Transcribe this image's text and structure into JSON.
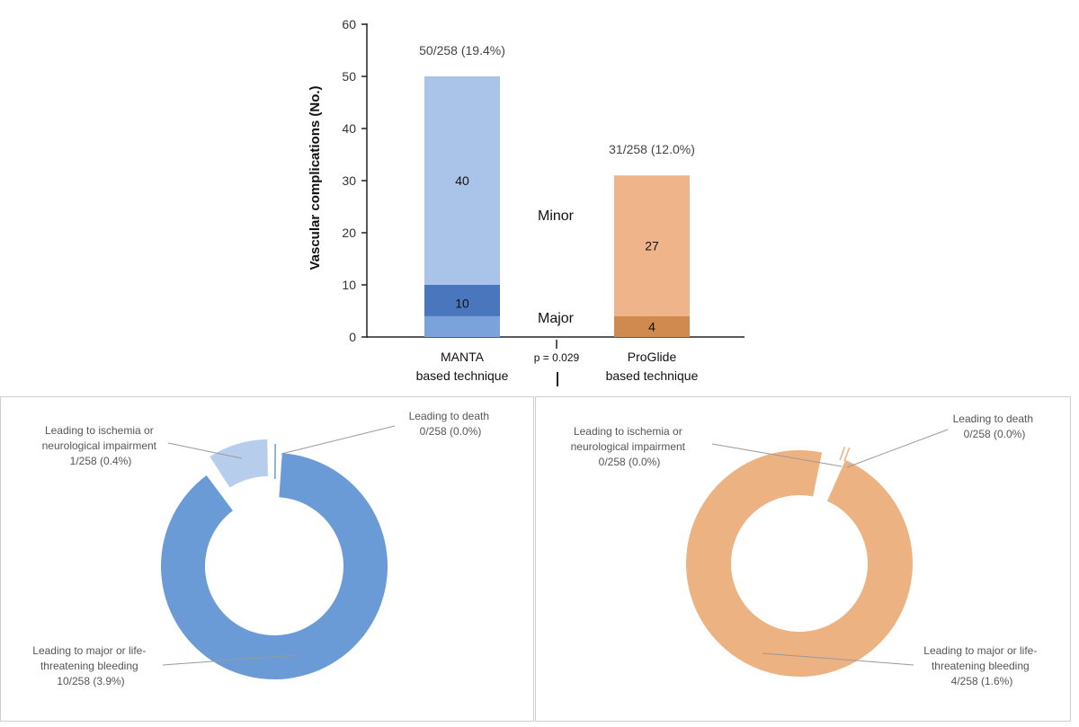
{
  "chart_data": [
    {
      "type": "bar",
      "stacked": true,
      "ylabel": "Vascular complications (No.)",
      "ylim": [
        0,
        60
      ],
      "yticks": [
        0,
        10,
        20,
        30,
        40,
        50,
        60
      ],
      "categories": [
        "MANTA",
        "ProGlide"
      ],
      "category_labels": [
        {
          "line1": "MANTA",
          "line2": "based technique"
        },
        {
          "line1": "ProGlide",
          "line2": "based technique"
        }
      ],
      "series": [
        {
          "name": "Major",
          "values": [
            10,
            4
          ],
          "labels": [
            "10",
            "4"
          ]
        },
        {
          "name": "Minor",
          "values": [
            40,
            27
          ],
          "labels": [
            "40",
            "27"
          ]
        }
      ],
      "totals": [
        "50/258 (19.4%)",
        "31/258 (12.0%)"
      ],
      "band_values": [
        4,
        4
      ],
      "series_labels": {
        "minor": "Minor",
        "major": "Major"
      },
      "p_value": "p = 0.029",
      "colors": {
        "manta_minor": "#a9c4e8",
        "manta_major": "#4a76bd",
        "manta_band": "#7ba2da",
        "proglide_minor": "#efb48a",
        "proglide_major": "#d08a50"
      }
    },
    {
      "type": "pie",
      "variant": "donut",
      "group": "MANTA",
      "total": 258,
      "slices": [
        {
          "name": "Leading to major or life-threatening bleeding",
          "value": 10,
          "exploded": false,
          "color": "#6b9bd6",
          "label_lines": [
            "Leading to major or life-",
            "threatening bleeding",
            "10/258 (3.9%)"
          ]
        },
        {
          "name": "Leading to ischemia or neurological impairment",
          "value": 1,
          "exploded": true,
          "color": "#b7cdec",
          "label_lines": [
            "Leading to ischemia or",
            "neurological impairment",
            "1/258 (0.4%)"
          ]
        },
        {
          "name": "Leading to death",
          "value": 0,
          "exploded": false,
          "color": "#6b9bd6",
          "label_lines": [
            "Leading to death",
            "0/258 (0.0%)"
          ]
        }
      ]
    },
    {
      "type": "pie",
      "variant": "donut",
      "group": "ProGlide",
      "total": 258,
      "slices": [
        {
          "name": "Leading to major or life-threatening bleeding",
          "value": 4,
          "exploded": false,
          "color": "#edb282",
          "label_lines": [
            "Leading to major or life-",
            "threatening bleeding",
            "4/258 (1.6%)"
          ]
        },
        {
          "name": "Leading to ischemia or neurological impairment",
          "value": 0,
          "exploded": false,
          "color": "#edb282",
          "label_lines": [
            "Leading to ischemia or",
            "neurological impairment",
            "0/258 (0.0%)"
          ]
        },
        {
          "name": "Leading to death",
          "value": 0,
          "exploded": false,
          "color": "#edb282",
          "label_lines": [
            "Leading to death",
            "0/258 (0.0%)"
          ]
        }
      ]
    }
  ]
}
